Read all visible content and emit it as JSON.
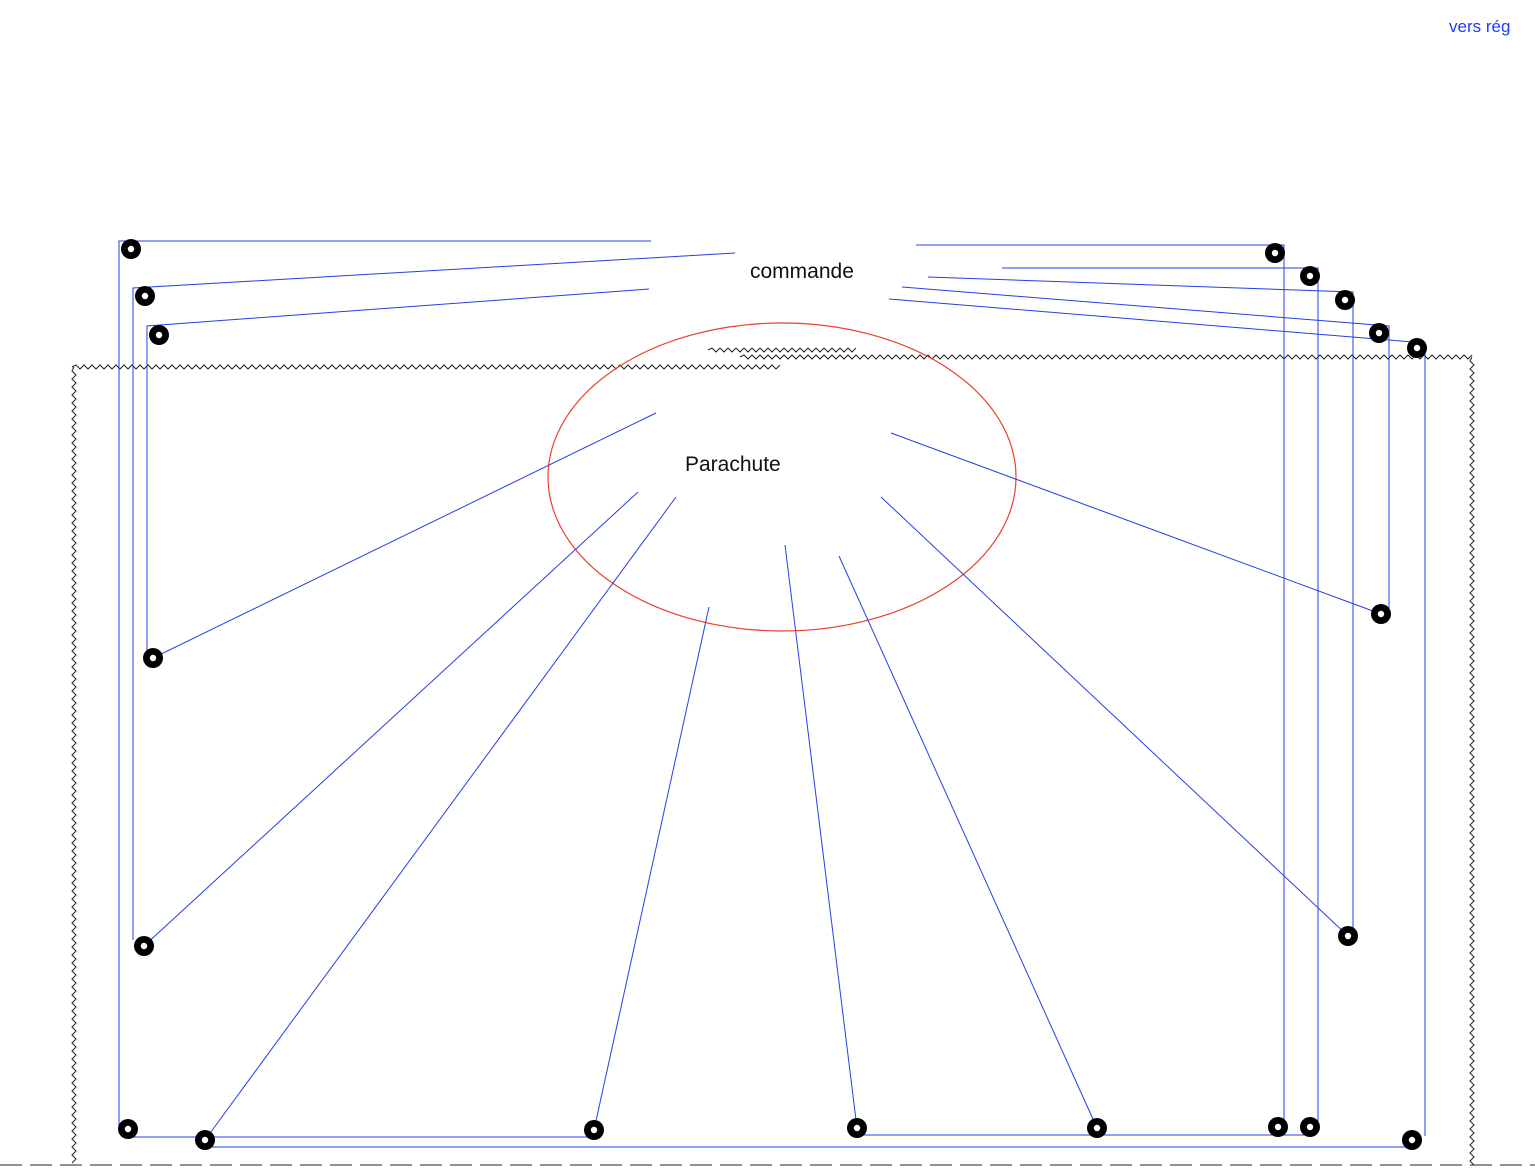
{
  "nav": {
    "link_label": "vers rég"
  },
  "labels": {
    "top": "commande",
    "center": "Parachute"
  },
  "colors": {
    "lines": "#2340e6",
    "ellipse": "#e8412c",
    "rings": "#000000",
    "link": "#1a3bff"
  }
}
